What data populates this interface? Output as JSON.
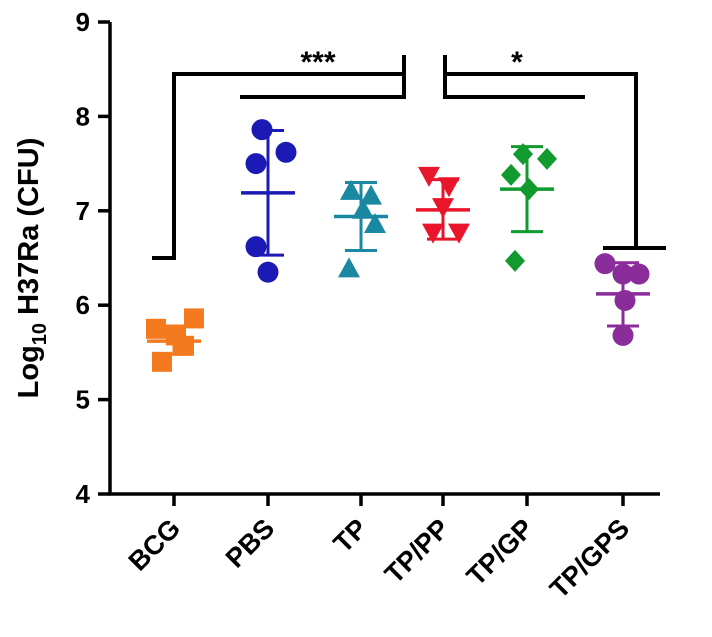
{
  "chart_data": {
    "type": "scatter",
    "title": "",
    "xlabel": "",
    "ylabel": {
      "prefix": "Log",
      "subscript": "10",
      "suffix": " H37Ra (CFU)"
    },
    "ylim": [
      4,
      9
    ],
    "yticks": [
      "4",
      "5",
      "6",
      "7",
      "8",
      "9"
    ],
    "categories": [
      "BCG",
      "PBS",
      "TP",
      "TP/PP",
      "TP/GP",
      "TP/GPS"
    ],
    "series": [
      {
        "name": "BCG",
        "color": "#f47a20",
        "marker": "square",
        "points": [
          5.86,
          5.75,
          5.68,
          5.57,
          5.4
        ],
        "mean": 5.62,
        "sd_low": 5.48,
        "sd_high": 5.78
      },
      {
        "name": "PBS",
        "color": "#1c1ab5",
        "marker": "circle",
        "points": [
          7.86,
          7.62,
          7.5,
          6.62,
          6.35
        ],
        "mean": 7.19,
        "sd_low": 6.53,
        "sd_high": 7.85
      },
      {
        "name": "TP",
        "color": "#1a88a0",
        "marker": "triangle-up",
        "points": [
          7.2,
          7.15,
          7.0,
          6.85,
          6.38
        ],
        "mean": 6.94,
        "sd_low": 6.58,
        "sd_high": 7.3
      },
      {
        "name": "TP/PP",
        "color": "#e8152b",
        "marker": "triangle-down",
        "points": [
          7.38,
          7.27,
          7.05,
          6.78,
          6.78
        ],
        "mean": 7.01,
        "sd_low": 6.7,
        "sd_high": 7.33
      },
      {
        "name": "TP/GP",
        "color": "#119a2d",
        "marker": "diamond",
        "points": [
          7.6,
          7.55,
          7.38,
          7.23,
          6.47
        ],
        "mean": 7.23,
        "sd_low": 6.78,
        "sd_high": 7.68
      },
      {
        "name": "TP/GPS",
        "color": "#8a2c9a",
        "marker": "circle",
        "points": [
          6.44,
          6.33,
          6.33,
          6.05,
          5.68
        ],
        "mean": 6.12,
        "sd_low": 5.78,
        "sd_high": 6.45
      }
    ],
    "significance": [
      {
        "label": "***",
        "from": "BCG",
        "to": "TP/PP"
      },
      {
        "label": "*",
        "from": "PBS",
        "to": "TP/GPS"
      }
    ]
  }
}
